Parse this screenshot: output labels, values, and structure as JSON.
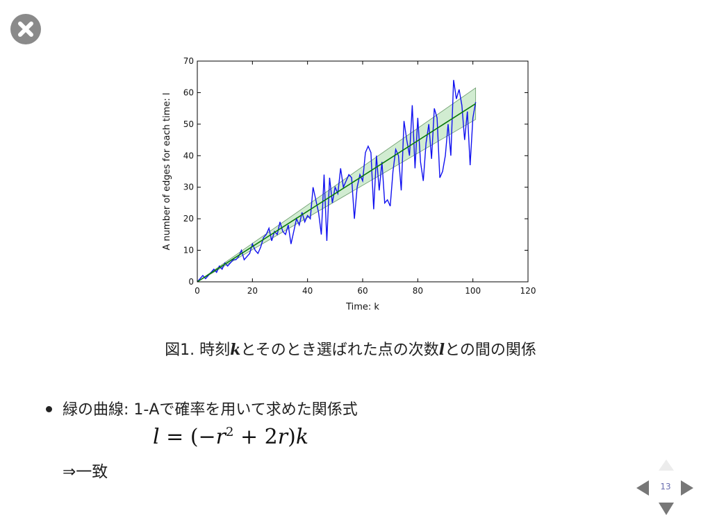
{
  "slide": {
    "caption": {
      "prefix": "図1. 時刻",
      "var_k": "k",
      "middle": "とそのとき選ばれた点の次数",
      "var_l": "l",
      "suffix": "との間の関係"
    },
    "bullet": "緑の曲線: 1-Aで確率を用いて求めた関係式",
    "formula": {
      "lhs": "l",
      "eq": " = (−",
      "r1": "r",
      "exp": "2",
      "plus": " + 2",
      "r2": "r",
      "close": ")",
      "k": "k"
    },
    "result": "⇒一致",
    "page_number": "13"
  },
  "icons": {
    "close": "close-icon",
    "nav_up": "nav-up-icon",
    "nav_left": "nav-left-icon",
    "nav_right": "nav-right-icon",
    "nav_down": "nav-down-icon"
  },
  "chart_data": {
    "type": "line",
    "xlabel": "Time: k",
    "ylabel": "A number of edges for each time: l",
    "xlim": [
      0,
      120
    ],
    "ylim": [
      0,
      70
    ],
    "xticks": [
      0,
      20,
      40,
      60,
      80,
      100,
      120
    ],
    "yticks": [
      0,
      10,
      20,
      30,
      40,
      50,
      60,
      70
    ],
    "grid": false,
    "series": [
      {
        "color": "#1010f0",
        "x": [
          0,
          1,
          2,
          3,
          4,
          5,
          6,
          7,
          8,
          9,
          10,
          11,
          12,
          13,
          14,
          15,
          16,
          17,
          18,
          19,
          20,
          21,
          22,
          23,
          24,
          25,
          26,
          27,
          28,
          29,
          30,
          31,
          32,
          33,
          34,
          35,
          36,
          37,
          38,
          39,
          40,
          41,
          42,
          43,
          44,
          45,
          46,
          47,
          48,
          49,
          50,
          51,
          52,
          53,
          54,
          55,
          56,
          57,
          58,
          59,
          60,
          61,
          62,
          63,
          64,
          65,
          66,
          67,
          68,
          69,
          70,
          71,
          72,
          73,
          74,
          75,
          76,
          77,
          78,
          79,
          80,
          81,
          82,
          83,
          84,
          85,
          86,
          87,
          88,
          89,
          90,
          91,
          92,
          93,
          94,
          95,
          96,
          97,
          98,
          99,
          100,
          101
        ],
        "y": [
          0,
          1,
          2,
          1,
          2,
          3,
          4,
          3,
          5,
          4,
          6,
          5,
          6,
          7,
          7,
          8,
          10,
          7,
          8,
          9,
          12,
          10,
          9,
          11,
          14,
          15,
          17,
          13,
          16,
          15,
          19,
          16,
          15,
          18,
          12,
          16,
          20,
          18,
          22,
          19,
          21,
          20,
          30,
          26,
          22,
          15,
          34,
          13,
          33,
          25,
          30,
          28,
          36,
          30,
          32,
          34,
          33,
          20,
          30,
          34,
          32,
          41,
          43,
          41,
          23,
          40,
          29,
          38,
          25,
          26,
          24,
          35,
          42,
          40,
          29,
          51,
          45,
          40,
          56,
          36,
          52,
          38,
          32,
          44,
          50,
          39,
          55,
          52,
          33,
          35,
          40,
          50,
          40,
          64,
          58,
          61,
          56,
          45,
          54,
          37,
          52,
          57
        ],
        "name": ""
      },
      {
        "color": "#0a7a0a",
        "x": [
          0,
          101
        ],
        "y": [
          0,
          56.5
        ],
        "name": ""
      }
    ],
    "band": {
      "color": "#98d498",
      "x": [
        0,
        101
      ],
      "lower": [
        0,
        51.5
      ],
      "upper": [
        0,
        61.5
      ]
    }
  }
}
